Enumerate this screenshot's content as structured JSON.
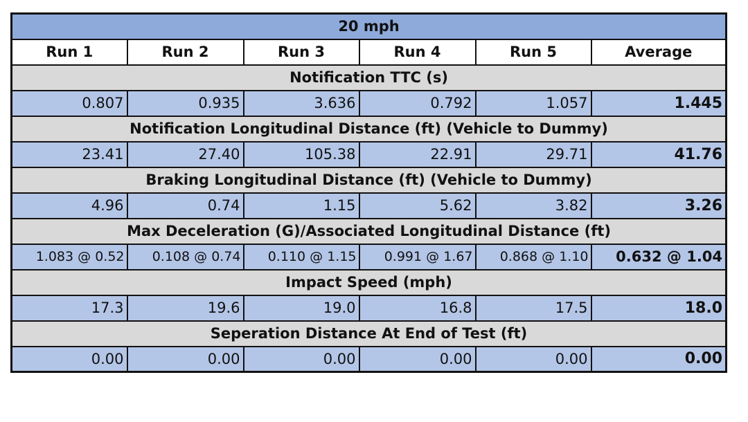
{
  "table": {
    "title": "20 mph",
    "headers": [
      "Run 1",
      "Run 2",
      "Run 3",
      "Run 4",
      "Run 5",
      "Average"
    ],
    "sections": [
      {
        "label": "Notification TTC (s)",
        "values": [
          "0.807",
          "0.935",
          "3.636",
          "0.792",
          "1.057"
        ],
        "average": "1.445"
      },
      {
        "label": "Notification Longitudinal Distance (ft) (Vehicle to Dummy)",
        "values": [
          "23.41",
          "27.40",
          "105.38",
          "22.91",
          "29.71"
        ],
        "average": "41.76"
      },
      {
        "label": "Braking Longitudinal Distance (ft) (Vehicle to Dummy)",
        "values": [
          "4.96",
          "0.74",
          "1.15",
          "5.62",
          "3.82"
        ],
        "average": "3.26"
      },
      {
        "label": "Max Deceleration (G)/Associated Longitudinal Distance (ft)",
        "values": [
          "1.083 @ 0.52",
          "0.108 @ 0.74",
          "0.110 @ 1.15",
          "0.991 @ 1.67",
          "0.868 @ 1.10"
        ],
        "average": "0.632 @ 1.04"
      },
      {
        "label": "Impact Speed (mph)",
        "values": [
          "17.3",
          "19.6",
          "19.0",
          "16.8",
          "17.5"
        ],
        "average": "18.0"
      },
      {
        "label": "Seperation Distance At End of Test (ft)",
        "values": [
          "0.00",
          "0.00",
          "0.00",
          "0.00",
          "0.00"
        ],
        "average": "0.00"
      }
    ]
  },
  "colors": {
    "title_bg": "#8eaadb",
    "section_bg": "#d9d9d9",
    "data_bg": "#b4c6e7",
    "header_bg": "#ffffff"
  }
}
